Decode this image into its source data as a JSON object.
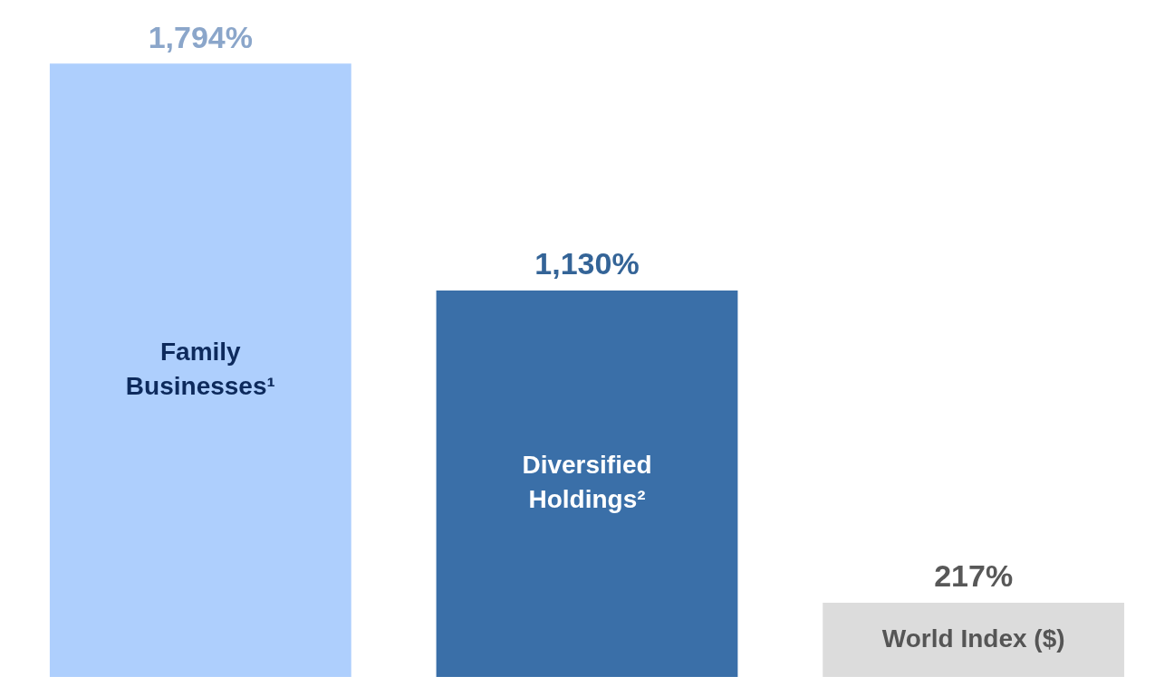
{
  "chart_data": {
    "type": "bar",
    "categories": [
      "Family Businesses¹",
      "Diversified Holdings²",
      "World Index ($)"
    ],
    "values": [
      1794,
      1130,
      217
    ],
    "value_labels": [
      "1,794%",
      "1,130%",
      "217%"
    ],
    "colors": [
      "#aecffd",
      "#3a6fa8",
      "#dcdcdc"
    ],
    "tick_labels": false
  }
}
